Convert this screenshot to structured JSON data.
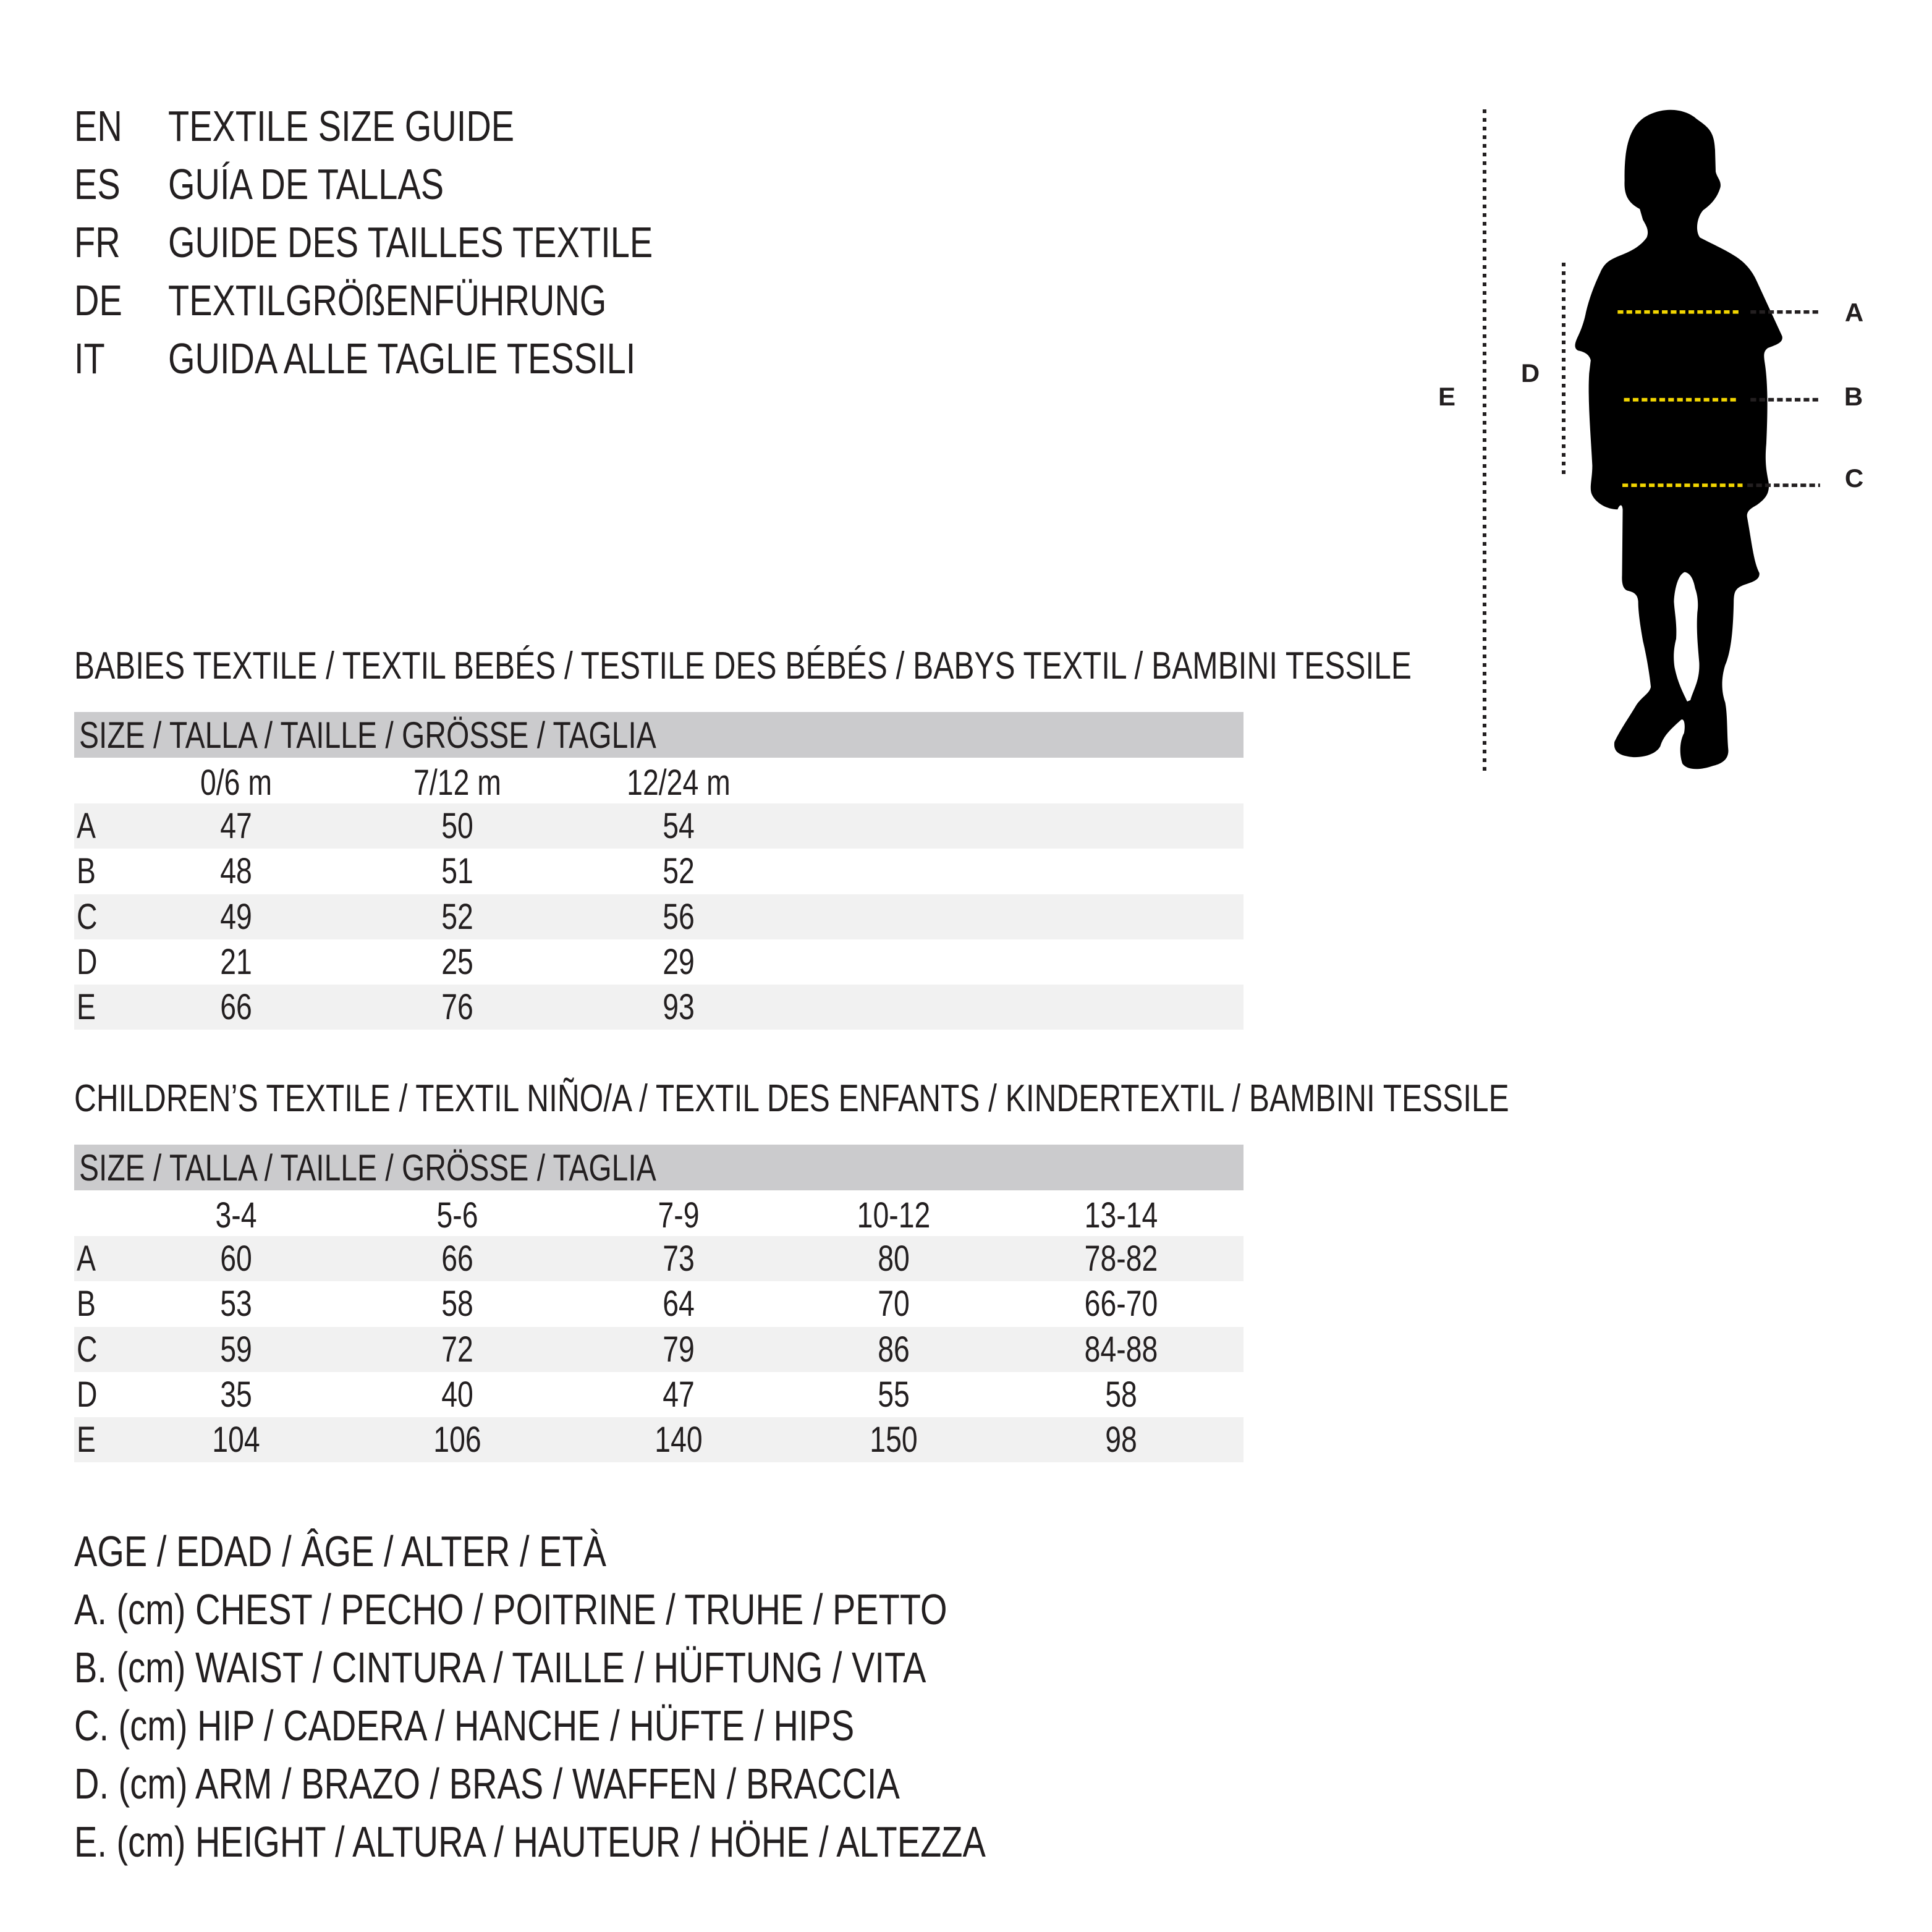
{
  "titles": [
    {
      "code": "EN",
      "text": "TEXTILE SIZE GUIDE"
    },
    {
      "code": "ES",
      "text": "GUÍA DE TALLAS"
    },
    {
      "code": "FR",
      "text": "GUIDE DES TAILLES TEXTILE"
    },
    {
      "code": "DE",
      "text": "TEXTILGRÖßENFÜHRUNG"
    },
    {
      "code": "IT",
      "text": "GUIDA ALLE TAGLIE TESSILI"
    }
  ],
  "figure": {
    "labels": {
      "A": "A",
      "B": "B",
      "C": "C",
      "D": "D",
      "E": "E"
    },
    "colors": {
      "silhouette": "#000000",
      "measure_line": "#f2d500",
      "dotted": "#231f20"
    }
  },
  "babies": {
    "heading": "BABIES TEXTILE / TEXTIL BEBÉS / TESTILE DES BÉBÉS / BABYS TEXTIL / BAMBINI TESSILE",
    "size_header": "SIZE / TALLA / TAILLE / GRÖSSE / TAGLIA",
    "columns": [
      "0/6 m",
      "7/12 m",
      "12/24 m"
    ],
    "rows": [
      {
        "label": "A",
        "values": [
          "47",
          "50",
          "54"
        ]
      },
      {
        "label": "B",
        "values": [
          "48",
          "51",
          "52"
        ]
      },
      {
        "label": "C",
        "values": [
          "49",
          "52",
          "56"
        ]
      },
      {
        "label": "D",
        "values": [
          "21",
          "25",
          "29"
        ]
      },
      {
        "label": "E",
        "values": [
          "66",
          "76",
          "93"
        ]
      }
    ]
  },
  "children": {
    "heading": "CHILDREN’S TEXTILE / TEXTIL NIÑO/A / TEXTIL DES ENFANTS / KINDERTEXTIL / BAMBINI TESSILE",
    "size_header": "SIZE / TALLA / TAILLE / GRÖSSE / TAGLIA",
    "columns": [
      "3-4",
      "5-6",
      "7-9",
      "10-12",
      "13-14"
    ],
    "rows": [
      {
        "label": "A",
        "values": [
          "60",
          "66",
          "73",
          "80",
          "78-82"
        ]
      },
      {
        "label": "B",
        "values": [
          "53",
          "58",
          "64",
          "70",
          "66-70"
        ]
      },
      {
        "label": "C",
        "values": [
          "59",
          "72",
          "79",
          "86",
          "84-88"
        ]
      },
      {
        "label": "D",
        "values": [
          "35",
          "40",
          "47",
          "55",
          "58"
        ]
      },
      {
        "label": "E",
        "values": [
          "104",
          "106",
          "140",
          "150",
          "98"
        ]
      }
    ]
  },
  "legend": [
    "AGE / EDAD / ÂGE / ALTER / ETÀ",
    "A. (cm) CHEST / PECHO / POITRINE / TRUHE / PETTO",
    "B. (cm) WAIST / CINTURA / TAILLE / HÜFTUNG / VITA",
    "C. (cm) HIP / CADERA / HANCHE / HÜFTE / HIPS",
    "D. (cm) ARM / BRAZO / BRAS / WAFFEN / BRACCIA",
    "E. (cm) HEIGHT / ALTURA / HAUTEUR / HÖHE / ALTEZZA"
  ]
}
